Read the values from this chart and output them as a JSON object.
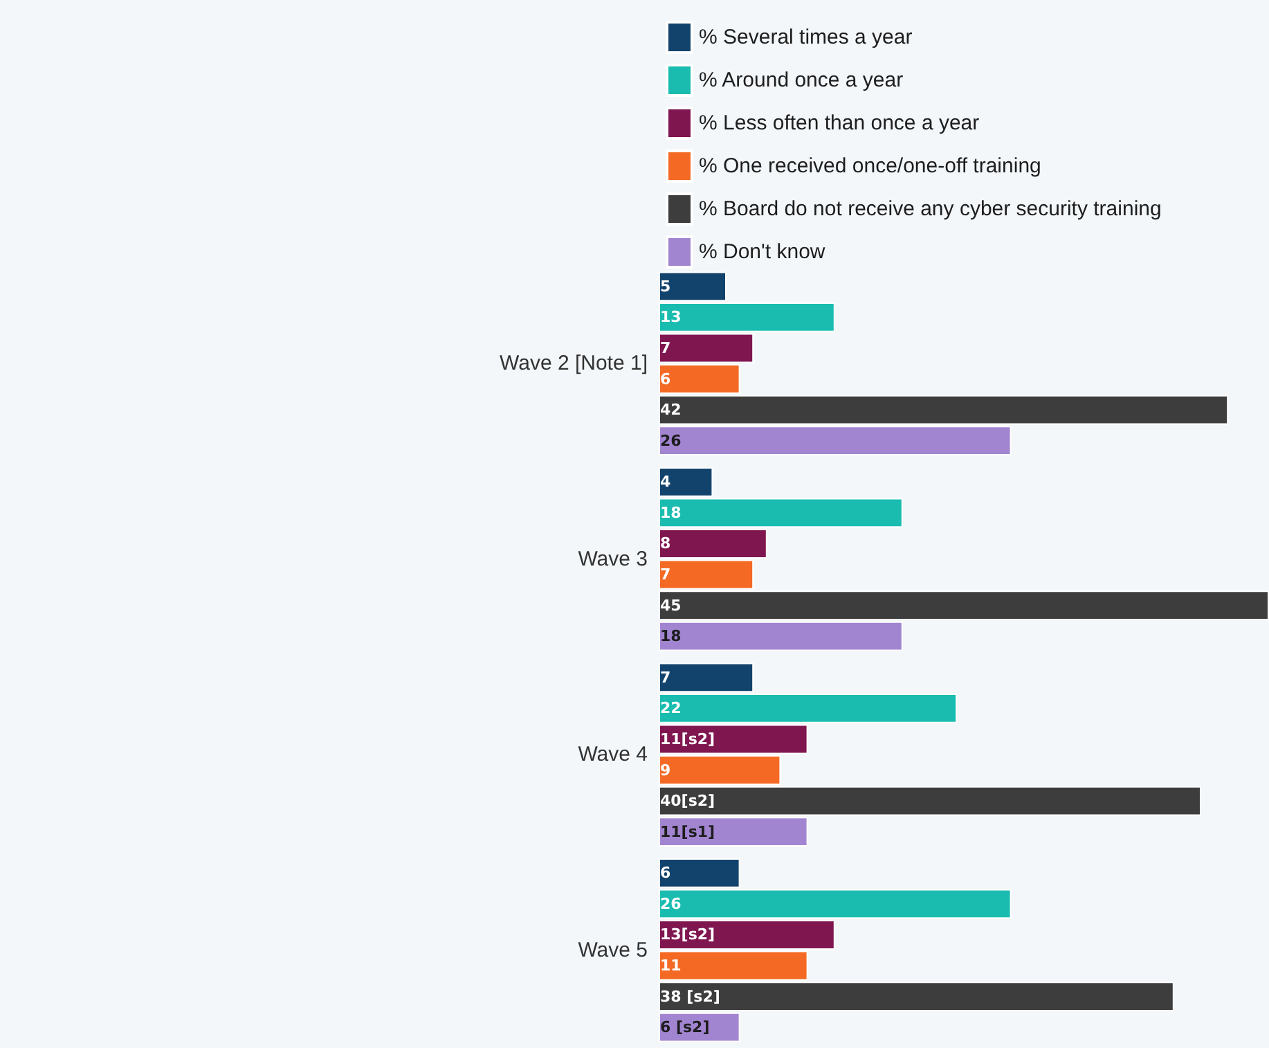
{
  "chart_data": {
    "type": "bar",
    "orientation": "horizontal",
    "legend": "top",
    "data_labels": true,
    "categories": [
      "Wave 2 [Note 1]",
      "Wave 3",
      "Wave 4",
      "Wave 5"
    ],
    "series": [
      {
        "name": "% Several times a year",
        "color": "#12436d",
        "values": [
          5,
          4,
          7,
          6
        ]
      },
      {
        "name": "% Around once a year",
        "color": "#1bbcb0",
        "values": [
          13,
          18,
          22,
          26
        ]
      },
      {
        "name": "% Less often than once a year",
        "color": "#801650",
        "values": [
          7,
          8,
          11,
          13
        ],
        "value_labels": [
          "7",
          "8",
          "11[s2]",
          "13[s2]"
        ]
      },
      {
        "name": "% One received once/one-off training",
        "color": "#f46a25",
        "values": [
          6,
          7,
          9,
          11
        ]
      },
      {
        "name": "% Board do not receive any cyber security training",
        "color": "#3d3d3d",
        "values": [
          42,
          45,
          40,
          38
        ],
        "value_labels": [
          "42",
          "45",
          "40[s2]",
          "38 [s2]"
        ]
      },
      {
        "name": "% Don't know",
        "color": "#a285d1",
        "values": [
          26,
          18,
          11,
          6
        ],
        "value_labels": [
          "26",
          "18",
          "11[s1]",
          "6 [s2]"
        ]
      }
    ]
  }
}
